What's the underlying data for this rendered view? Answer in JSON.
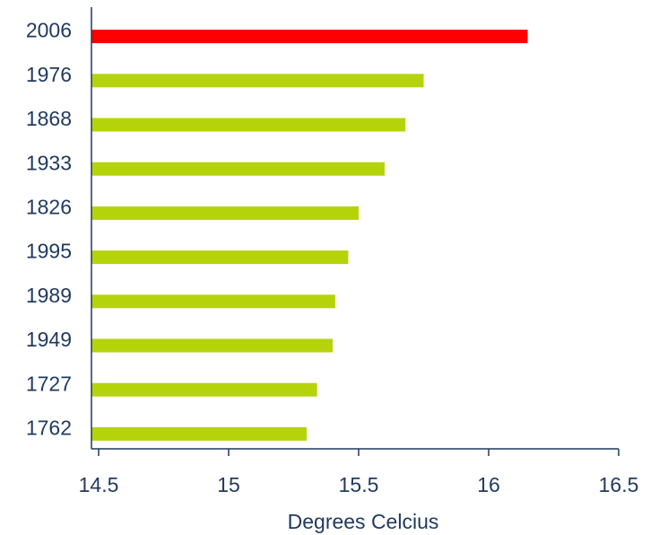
{
  "chart_data": {
    "type": "bar",
    "orientation": "horizontal",
    "title": "",
    "xlabel": "Degrees Celcius",
    "ylabel": "",
    "xlim": [
      14.5,
      16.5
    ],
    "xticks": [
      "14.5",
      "15",
      "15.5",
      "16",
      "16.5"
    ],
    "grid": false,
    "categories": [
      "2006",
      "1976",
      "1868",
      "1933",
      "1826",
      "1995",
      "1989",
      "1949",
      "1727",
      "1762"
    ],
    "values": [
      16.15,
      15.75,
      15.68,
      15.6,
      15.5,
      15.46,
      15.41,
      15.4,
      15.34,
      15.3
    ],
    "highlight_category": "2006",
    "colors": {
      "highlight": "#ff0000",
      "default": "#b5d30a",
      "axis": "#1f3a5f"
    }
  }
}
